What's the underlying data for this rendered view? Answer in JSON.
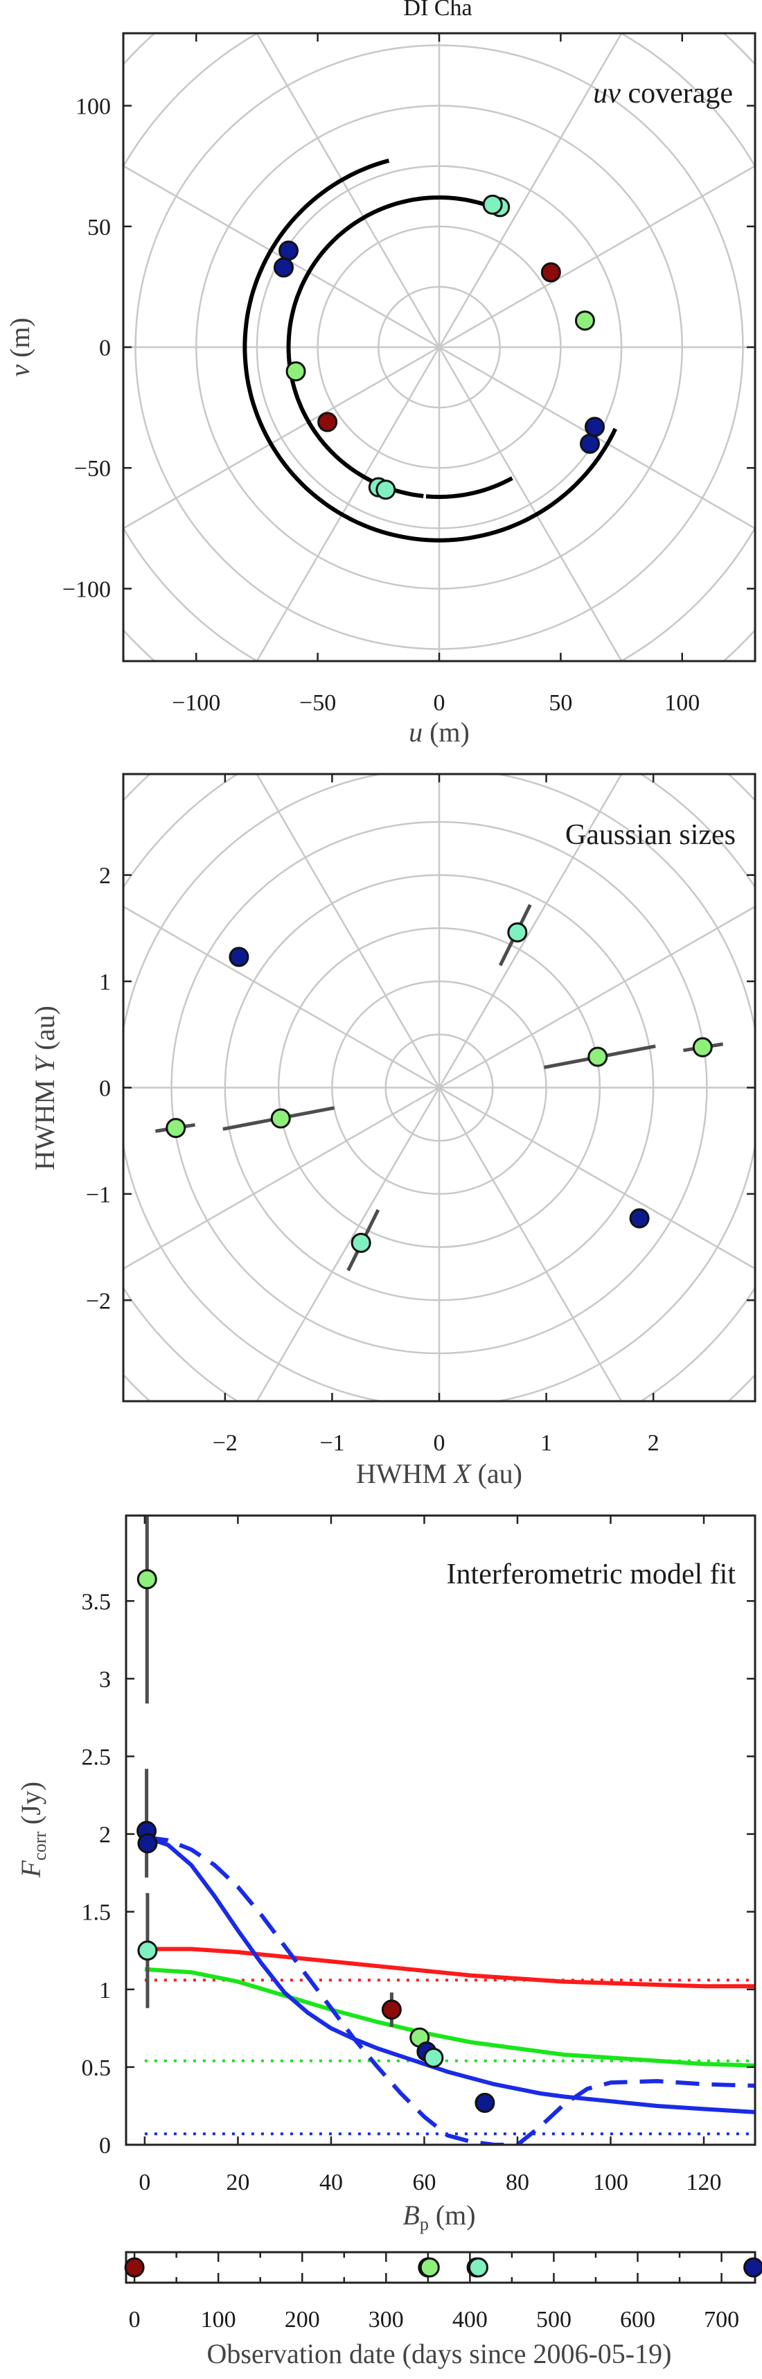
{
  "figure_title": "DI Cha",
  "colors": {
    "dark_blue": "#0d1a8f",
    "dark_red": "#8b0a0a",
    "light_green": "#8ef07a",
    "aqua": "#7ff0c0",
    "fit_red": "#ff1a1a",
    "fit_green": "#19e619",
    "fit_blue": "#1a2be6",
    "grid": "#c8c8c8",
    "errbar": "#4d4d4d"
  },
  "chart_data": [
    {
      "id": "uv",
      "type": "scatter",
      "title": "uv coverage",
      "title_italic": "uv",
      "title_rest": " coverage",
      "xlabel": "u (m)",
      "ylabel": "v (m)",
      "xlabel_var": "u",
      "ylabel_var": "v",
      "unit": "(m)",
      "xlim": [
        -130,
        130
      ],
      "ylim": [
        -130,
        130
      ],
      "xticks": [
        -100,
        -50,
        0,
        50,
        100
      ],
      "yticks": [
        -100,
        -50,
        0,
        50,
        100
      ],
      "polar_grid_radii": [
        25,
        50,
        75,
        100,
        125,
        150,
        175
      ],
      "polar_grid_angles_deg": [
        0,
        30,
        60,
        90,
        120,
        150
      ],
      "tracks": [
        {
          "radius": 80,
          "from_deg": 105,
          "to_deg": 155
        },
        {
          "radius": 80,
          "from_deg": 155,
          "to_deg": 285
        },
        {
          "radius": 80,
          "from_deg": 285,
          "to_deg": 335
        },
        {
          "radius": 62,
          "from_deg": 70,
          "to_deg": 120
        },
        {
          "radius": 62,
          "from_deg": 120,
          "to_deg": 265
        },
        {
          "radius": 62,
          "from_deg": 265,
          "to_deg": 300
        }
      ],
      "points": [
        {
          "u": 25,
          "v": 58,
          "color": "aqua"
        },
        {
          "u": 22,
          "v": 59,
          "color": "aqua"
        },
        {
          "u": -25,
          "v": -58,
          "color": "aqua"
        },
        {
          "u": -22,
          "v": -59,
          "color": "aqua"
        },
        {
          "u": -62,
          "v": 40,
          "color": "dark_blue"
        },
        {
          "u": -64,
          "v": 33,
          "color": "dark_blue"
        },
        {
          "u": 62,
          "v": -40,
          "color": "dark_blue"
        },
        {
          "u": 64,
          "v": -33,
          "color": "dark_blue"
        },
        {
          "u": 46,
          "v": 31,
          "color": "dark_red"
        },
        {
          "u": -46,
          "v": -31,
          "color": "dark_red"
        },
        {
          "u": 60,
          "v": 11,
          "color": "light_green"
        },
        {
          "u": -59,
          "v": -10,
          "color": "light_green"
        }
      ]
    },
    {
      "id": "sizes",
      "type": "scatter",
      "title": "Gaussian sizes",
      "xlabel": "HWHM X (au)",
      "ylabel": "HWHM Y (au)",
      "xlabel_pre": "HWHM ",
      "xlabel_var": "X",
      "ylabel_pre": "HWHM ",
      "ylabel_var": "Y",
      "unit": " (au)",
      "xlim": [
        -2.95,
        2.95
      ],
      "ylim": [
        -2.95,
        2.95
      ],
      "xticks": [
        -2,
        -1,
        0,
        1,
        2
      ],
      "yticks": [
        -2,
        -1,
        0,
        1,
        2
      ],
      "polar_grid_radii": [
        0.5,
        1,
        1.5,
        2,
        2.5,
        3,
        3.5,
        4
      ],
      "polar_grid_angles_deg": [
        0,
        30,
        60,
        90,
        120,
        150
      ],
      "points": [
        {
          "x": 0.73,
          "y": 1.46,
          "color": "aqua",
          "bar": [
            [
              0.57,
              1.15
            ],
            [
              0.85,
              1.72
            ]
          ]
        },
        {
          "x": -0.73,
          "y": -1.46,
          "color": "aqua",
          "bar": [
            [
              -0.57,
              -1.15
            ],
            [
              -0.85,
              -1.72
            ]
          ]
        },
        {
          "x": 1.48,
          "y": 0.29,
          "color": "light_green",
          "bar": [
            [
              0.98,
              0.19
            ],
            [
              2.02,
              0.39
            ]
          ]
        },
        {
          "x": -1.48,
          "y": -0.29,
          "color": "light_green",
          "bar": [
            [
              -0.98,
              -0.19
            ],
            [
              -2.02,
              -0.39
            ]
          ]
        },
        {
          "x": 2.46,
          "y": 0.38,
          "color": "light_green",
          "bar": [
            [
              2.28,
              0.35
            ],
            [
              2.65,
              0.41
            ]
          ]
        },
        {
          "x": -2.46,
          "y": -0.38,
          "color": "light_green",
          "bar": [
            [
              -2.28,
              -0.35
            ],
            [
              -2.65,
              -0.41
            ]
          ]
        },
        {
          "x": -1.87,
          "y": 1.23,
          "color": "dark_blue"
        },
        {
          "x": 1.87,
          "y": -1.23,
          "color": "dark_blue"
        }
      ]
    },
    {
      "id": "fit",
      "type": "line",
      "title": "Interferometric model fit",
      "xlabel": "B_p (m)",
      "ylabel": "F_corr (Jy)",
      "xlabel_var": "B",
      "xlabel_sub": "p",
      "ylabel_var": "F",
      "ylabel_sub": "corr",
      "unit": "(m)",
      "yunit": "(Jy)",
      "xlim": [
        -4,
        131
      ],
      "ylim": [
        0,
        4.05
      ],
      "xticks": [
        0,
        20,
        40,
        60,
        80,
        100,
        120
      ],
      "yticks": [
        0,
        0.5,
        1,
        1.5,
        2,
        2.5,
        3,
        3.5
      ],
      "series": [
        {
          "color": "fit_red",
          "style": "solid",
          "x": [
            0,
            10,
            20,
            30,
            40,
            50,
            60,
            70,
            80,
            90,
            100,
            110,
            120,
            131
          ],
          "y": [
            1.26,
            1.26,
            1.24,
            1.21,
            1.18,
            1.15,
            1.12,
            1.09,
            1.07,
            1.05,
            1.04,
            1.03,
            1.02,
            1.02
          ]
        },
        {
          "color": "fit_red",
          "style": "dotted",
          "x": [
            0,
            131
          ],
          "y": [
            1.06,
            1.06
          ]
        },
        {
          "color": "fit_green",
          "style": "solid",
          "x": [
            0,
            10,
            20,
            30,
            40,
            50,
            60,
            70,
            80,
            90,
            100,
            110,
            120,
            131
          ],
          "y": [
            1.13,
            1.11,
            1.05,
            0.96,
            0.87,
            0.79,
            0.72,
            0.66,
            0.62,
            0.58,
            0.56,
            0.54,
            0.52,
            0.51
          ]
        },
        {
          "color": "fit_green",
          "style": "dotted",
          "x": [
            0,
            131
          ],
          "y": [
            0.54,
            0.54
          ]
        },
        {
          "color": "fit_blue",
          "style": "solid",
          "x": [
            0,
            5,
            10,
            15,
            20,
            25,
            30,
            35,
            40,
            45,
            50,
            55,
            60,
            65,
            70,
            75,
            80,
            85,
            90,
            100,
            110,
            120,
            131
          ],
          "y": [
            1.98,
            1.93,
            1.8,
            1.6,
            1.38,
            1.17,
            0.98,
            0.85,
            0.75,
            0.68,
            0.62,
            0.57,
            0.52,
            0.47,
            0.43,
            0.39,
            0.36,
            0.33,
            0.31,
            0.28,
            0.25,
            0.23,
            0.21
          ]
        },
        {
          "color": "fit_blue",
          "style": "dashed",
          "x": [
            0,
            5,
            10,
            15,
            20,
            25,
            30,
            35,
            40,
            45,
            50,
            55,
            60,
            65,
            70,
            75,
            80,
            85,
            90,
            95,
            100,
            110,
            120,
            131
          ],
          "y": [
            1.98,
            1.96,
            1.9,
            1.8,
            1.66,
            1.48,
            1.28,
            1.08,
            0.88,
            0.68,
            0.5,
            0.33,
            0.18,
            0.06,
            0.02,
            0.0,
            0.0,
            0.12,
            0.26,
            0.36,
            0.4,
            0.41,
            0.39,
            0.38
          ]
        },
        {
          "color": "fit_blue",
          "style": "dotted",
          "x": [
            0,
            131
          ],
          "y": [
            0.07,
            0.07
          ]
        }
      ],
      "points": [
        {
          "x": 0.5,
          "y": 3.64,
          "color": "light_green",
          "err": [
            2.84,
            4.05
          ]
        },
        {
          "x": 0.6,
          "y": 1.25,
          "color": "aqua",
          "err": [
            0.88,
            1.62
          ]
        },
        {
          "x": 0.4,
          "y": 2.02,
          "color": "dark_blue",
          "err": [
            1.72,
            2.42
          ]
        },
        {
          "x": 0.6,
          "y": 1.94,
          "color": "dark_blue"
        },
        {
          "x": 53,
          "y": 0.87,
          "color": "dark_red",
          "err": [
            0.76,
            0.98
          ]
        },
        {
          "x": 59,
          "y": 0.69,
          "color": "light_green"
        },
        {
          "x": 60.5,
          "y": 0.6,
          "color": "dark_blue"
        },
        {
          "x": 62,
          "y": 0.56,
          "color": "aqua"
        },
        {
          "x": 73,
          "y": 0.27,
          "color": "dark_blue"
        }
      ]
    },
    {
      "id": "dates",
      "type": "scatter",
      "xlabel": "Observation date (days since 2006-05-19)",
      "xlim": [
        -10,
        740
      ],
      "xticks": [
        0,
        100,
        200,
        300,
        400,
        500,
        600,
        700
      ],
      "minor_ticks": [
        50,
        150,
        250,
        350,
        450,
        550,
        650
      ],
      "points": [
        {
          "x": 0,
          "color": "dark_red"
        },
        {
          "x": 350,
          "color": "aqua"
        },
        {
          "x": 352,
          "color": "light_green"
        },
        {
          "x": 408,
          "color": "light_green"
        },
        {
          "x": 410,
          "color": "aqua"
        },
        {
          "x": 738,
          "color": "dark_blue"
        }
      ]
    }
  ]
}
